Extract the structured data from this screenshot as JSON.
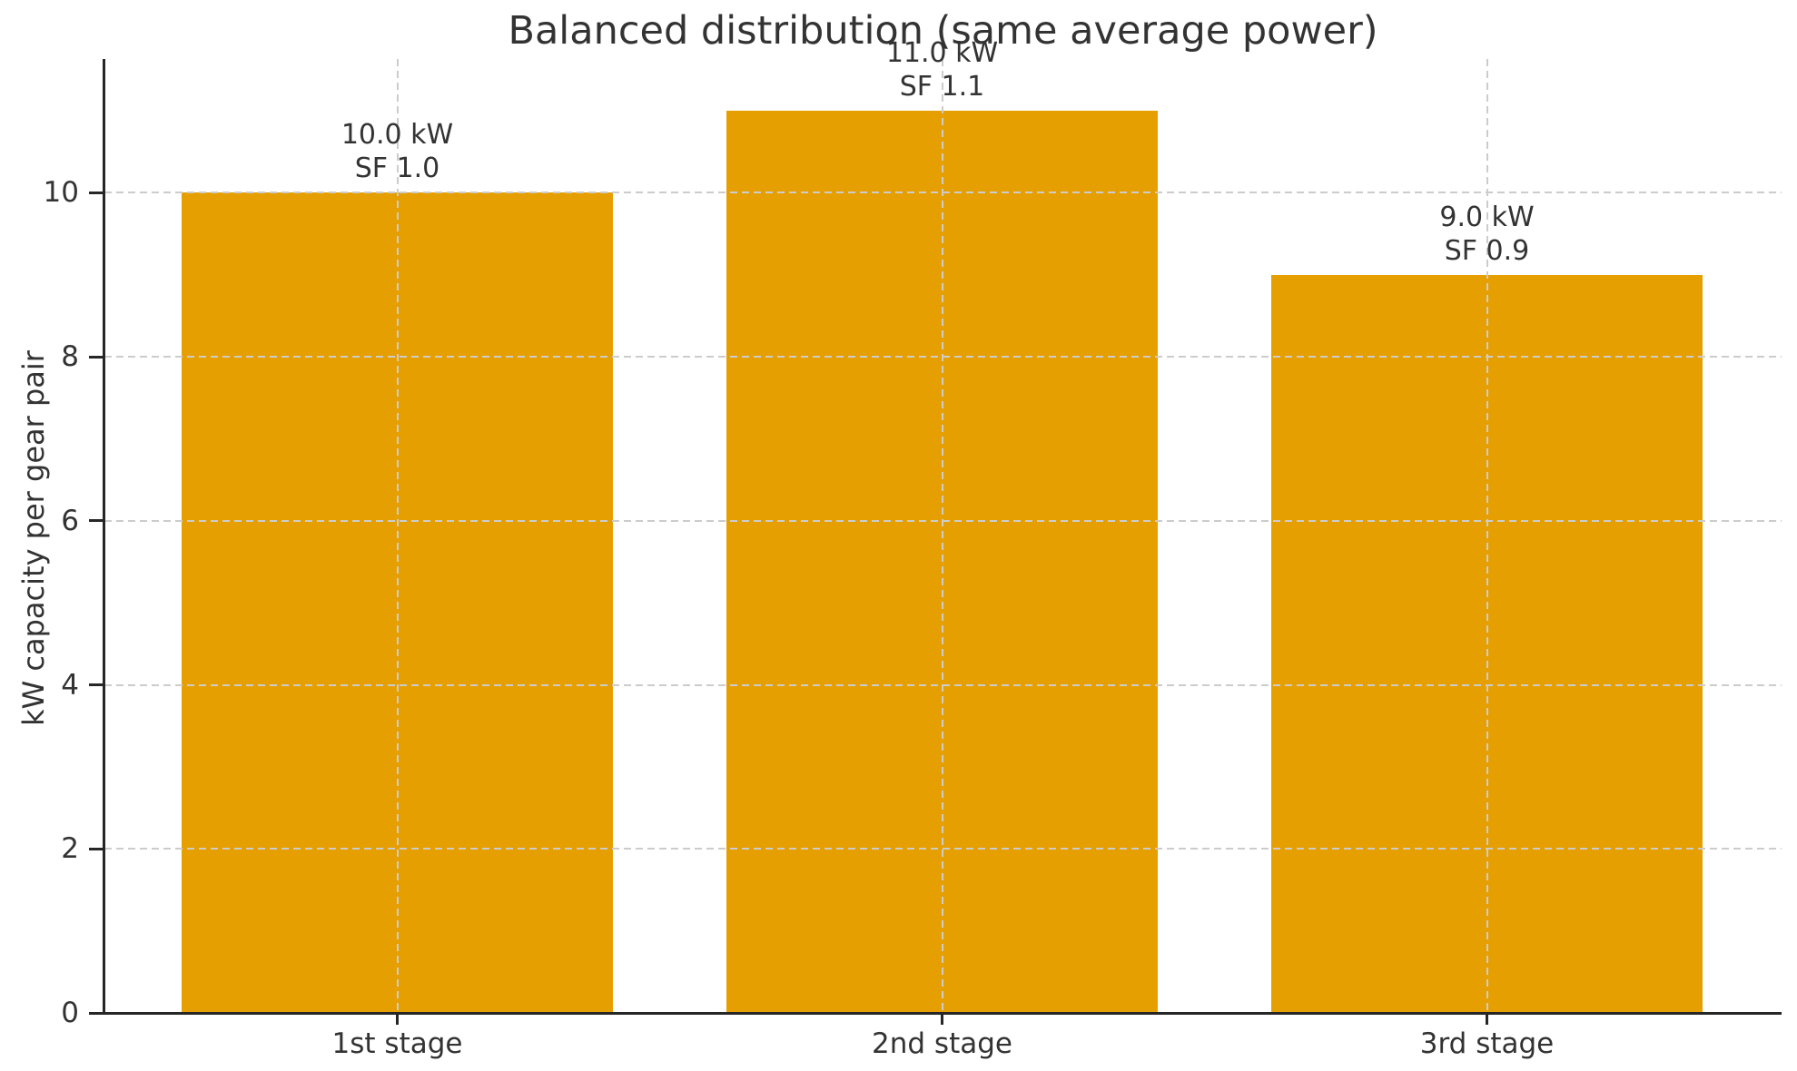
{
  "title": "Balanced distribution (same average power)",
  "chart_data": {
    "type": "bar",
    "title": "Balanced distribution (same average power)",
    "categories": [
      "1st stage",
      "2nd stage",
      "3rd stage"
    ],
    "values": [
      10.0,
      11.0,
      9.0
    ],
    "bar_labels": [
      [
        "10.0 kW",
        "SF 1.0"
      ],
      [
        "11.0 kW",
        "SF 1.1"
      ],
      [
        "9.0 kW",
        "SF 0.9"
      ]
    ],
    "xlabel": "",
    "ylabel": "kW capacity per gear pair",
    "yticks": [
      0,
      2,
      4,
      6,
      8,
      10
    ],
    "ylim": [
      0,
      11.63
    ],
    "grid": "dashed, both axes, drawn over bars",
    "legend": "none",
    "bar_color": "#E69F00",
    "text_color": "#333333",
    "grid_color": "#CCCCCC",
    "spine_color": "#262626",
    "background": "#FFFFFF"
  }
}
